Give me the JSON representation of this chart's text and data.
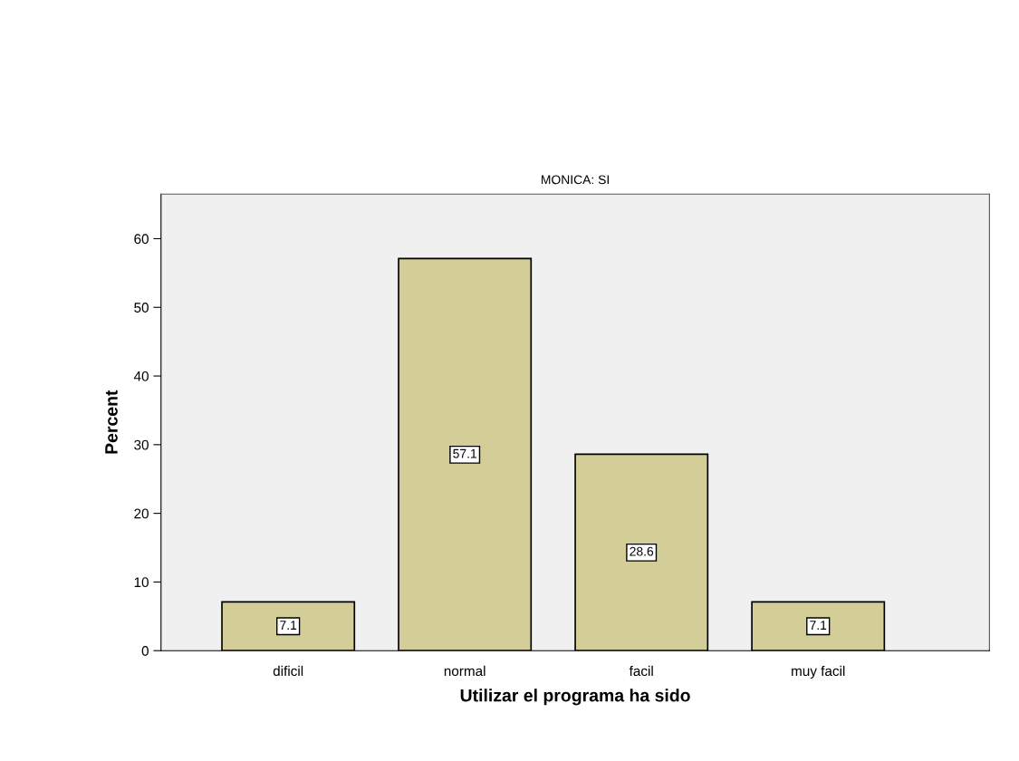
{
  "chart_data": {
    "type": "bar",
    "title": "MONICA: SI",
    "xlabel": "Utilizar el programa ha sido",
    "ylabel": "Percent",
    "categories": [
      "dificil",
      "normal",
      "facil",
      "muy facil"
    ],
    "values": [
      7.1,
      57.1,
      28.6,
      7.1
    ],
    "color": "#d3cd98",
    "ylim": [
      0,
      66.5
    ],
    "yticks": [
      0,
      10,
      20,
      30,
      40,
      50,
      60
    ],
    "grid": false,
    "data_labels": true
  }
}
